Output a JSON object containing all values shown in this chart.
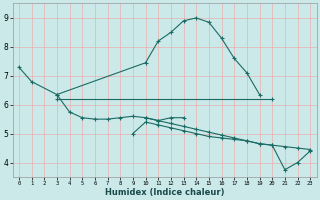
{
  "xlabel": "Humidex (Indice chaleur)",
  "bg_color": "#cce9ea",
  "line_color": "#1a6b63",
  "grid_color": "#f0f0f0",
  "xlim": [
    -0.5,
    23.5
  ],
  "ylim": [
    3.5,
    9.5
  ],
  "yticks": [
    4,
    5,
    6,
    7,
    8,
    9
  ],
  "xticks": [
    0,
    1,
    2,
    3,
    4,
    5,
    6,
    7,
    8,
    9,
    10,
    11,
    12,
    13,
    14,
    15,
    16,
    17,
    18,
    19,
    20,
    21,
    22,
    23
  ],
  "series": [
    {
      "x": [
        0,
        1,
        3,
        10,
        11,
        12,
        13,
        14,
        15,
        16,
        17,
        18,
        19
      ],
      "y": [
        7.3,
        6.8,
        6.35,
        7.45,
        8.2,
        8.5,
        8.9,
        9.0,
        8.85,
        8.3,
        7.6,
        7.1,
        6.35
      ]
    },
    {
      "x": [
        3,
        20
      ],
      "y": [
        6.2,
        6.2
      ]
    },
    {
      "x": [
        3,
        4,
        5,
        6,
        7,
        8,
        9,
        10,
        11,
        12,
        13
      ],
      "y": [
        6.35,
        5.75,
        5.55,
        5.5,
        5.5,
        5.55,
        5.6,
        5.55,
        5.45,
        5.55,
        5.55
      ]
    },
    {
      "x": [
        9,
        10,
        11,
        12,
        13,
        14,
        15,
        16,
        17,
        18,
        19,
        20,
        21,
        22,
        23
      ],
      "y": [
        5.0,
        5.4,
        5.3,
        5.2,
        5.1,
        5.0,
        4.9,
        4.85,
        4.8,
        4.75,
        4.65,
        4.6,
        3.75,
        4.0,
        4.4
      ]
    },
    {
      "x": [
        10,
        11,
        12,
        13,
        14,
        15,
        16,
        17,
        18,
        19,
        20,
        21,
        22,
        23
      ],
      "y": [
        5.55,
        5.45,
        5.35,
        5.25,
        5.15,
        5.05,
        4.95,
        4.85,
        4.75,
        4.65,
        4.6,
        4.55,
        4.5,
        4.45
      ]
    }
  ]
}
